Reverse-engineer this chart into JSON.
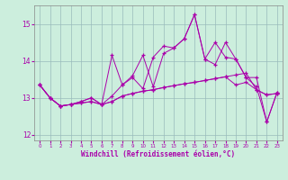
{
  "xlabel": "Windchill (Refroidissement éolien,°C)",
  "bg_color": "#cceedd",
  "line_color": "#aa00aa",
  "grid_color": "#99bbbb",
  "x_values": [
    0,
    1,
    2,
    3,
    4,
    5,
    6,
    7,
    8,
    9,
    10,
    11,
    12,
    13,
    14,
    15,
    16,
    17,
    18,
    19,
    20,
    21,
    22,
    23
  ],
  "line1": [
    13.35,
    13.0,
    12.78,
    12.82,
    12.86,
    12.9,
    12.82,
    12.9,
    13.05,
    13.12,
    13.18,
    13.22,
    13.28,
    13.33,
    13.38,
    13.42,
    13.47,
    13.52,
    13.57,
    13.62,
    13.67,
    13.22,
    13.08,
    13.12
  ],
  "line2": [
    13.35,
    13.0,
    12.78,
    12.82,
    12.86,
    12.9,
    12.82,
    12.9,
    13.05,
    13.12,
    13.18,
    13.22,
    13.28,
    13.33,
    13.38,
    13.42,
    13.47,
    13.52,
    13.57,
    13.35,
    13.42,
    13.22,
    13.08,
    13.12
  ],
  "line3": [
    13.35,
    13.0,
    12.78,
    12.82,
    12.9,
    13.0,
    12.82,
    14.15,
    13.35,
    13.55,
    13.25,
    14.1,
    14.4,
    14.35,
    14.6,
    15.25,
    14.05,
    14.5,
    14.1,
    14.05,
    13.55,
    13.55,
    12.35,
    13.15
  ],
  "line4": [
    13.35,
    13.0,
    12.78,
    12.82,
    12.9,
    13.0,
    12.82,
    13.05,
    13.35,
    13.6,
    14.15,
    13.3,
    14.2,
    14.35,
    14.6,
    15.25,
    14.05,
    13.9,
    14.5,
    14.05,
    13.55,
    13.3,
    12.35,
    13.15
  ],
  "ylim": [
    11.85,
    15.5
  ],
  "yticks": [
    12,
    13,
    14,
    15
  ],
  "xticks": [
    0,
    1,
    2,
    3,
    4,
    5,
    6,
    7,
    8,
    9,
    10,
    11,
    12,
    13,
    14,
    15,
    16,
    17,
    18,
    19,
    20,
    21,
    22,
    23
  ]
}
